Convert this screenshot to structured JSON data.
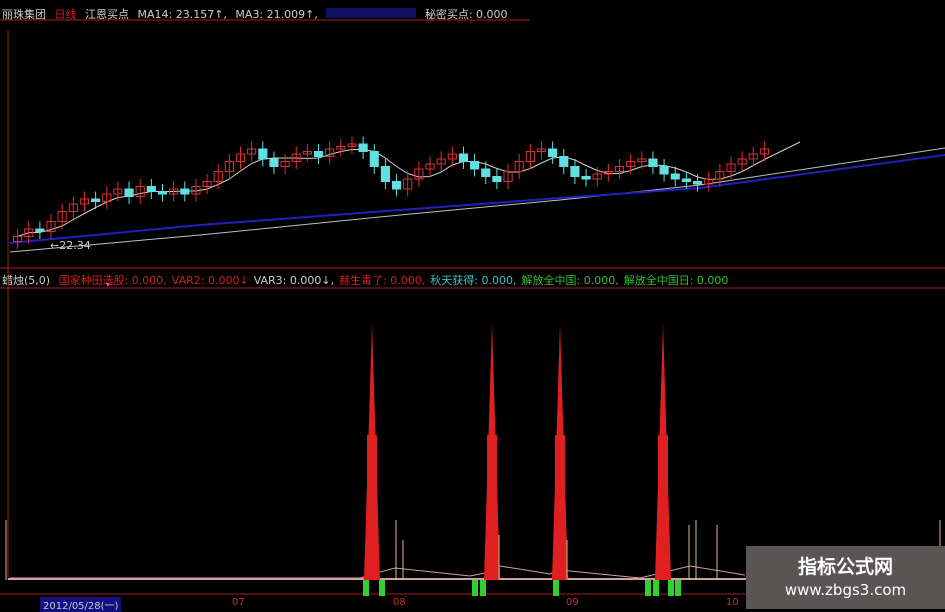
{
  "header": {
    "stock": "丽珠集团",
    "period": "日线",
    "buy_label": "江恩买点",
    "ma14": "MA14: 23.157↑,",
    "ma3": "MA3: 21.009↑,",
    "secret": "秘密买点: 0.000"
  },
  "low_label": "22.34",
  "indicator": {
    "name": "蜡烛(5,0)",
    "items": [
      "国家种田选股: 0.000,",
      "VAR2: 0.000↓",
      "VAR3: 0.000↓,",
      "赫生毒了: 0.000,",
      "秋天获得: 0.000,",
      "解放全中国: 0.000,",
      "解放全中国日: 0.000"
    ],
    "colors": [
      "#d02020",
      "#d02020",
      "#ccc",
      "#d02020",
      "#40c0c0",
      "#30c030",
      "#30c030"
    ]
  },
  "x_axis": {
    "date": "2012/05/28(一)",
    "ticks": [
      "07",
      "08",
      "09",
      "10"
    ]
  },
  "watermark": {
    "title": "指标公式网",
    "url": "www.zbgs3.com"
  },
  "colors": {
    "up": "#e03030",
    "down": "#60e0e0",
    "ma_short": "#d0d0d0",
    "ma_long": "#2020c0",
    "spike": "#e02020",
    "green": "#30d030"
  },
  "chart_data": {
    "type": "candlestick",
    "closes": [
      22.6,
      22.9,
      22.8,
      23.2,
      23.6,
      23.9,
      24.1,
      24.0,
      24.3,
      24.5,
      24.2,
      24.6,
      24.4,
      24.3,
      24.5,
      24.3,
      24.6,
      24.8,
      25.2,
      25.6,
      25.9,
      26.1,
      25.7,
      25.4,
      25.6,
      25.9,
      26.0,
      25.8,
      26.1,
      26.2,
      26.3,
      26.0,
      25.4,
      24.8,
      24.5,
      24.9,
      25.3,
      25.5,
      25.7,
      25.9,
      25.6,
      25.3,
      25.0,
      24.8,
      25.2,
      25.6,
      26.0,
      26.1,
      25.8,
      25.4,
      25.0,
      24.9,
      25.1,
      25.2,
      25.4,
      25.6,
      25.7,
      25.4,
      25.1,
      24.9,
      24.8,
      24.7,
      24.9,
      25.2,
      25.5,
      25.7,
      25.9,
      26.1
    ],
    "min_label": 22.34,
    "indicator_spikes": [
      0.95,
      0.95,
      0.95,
      0.95
    ]
  }
}
